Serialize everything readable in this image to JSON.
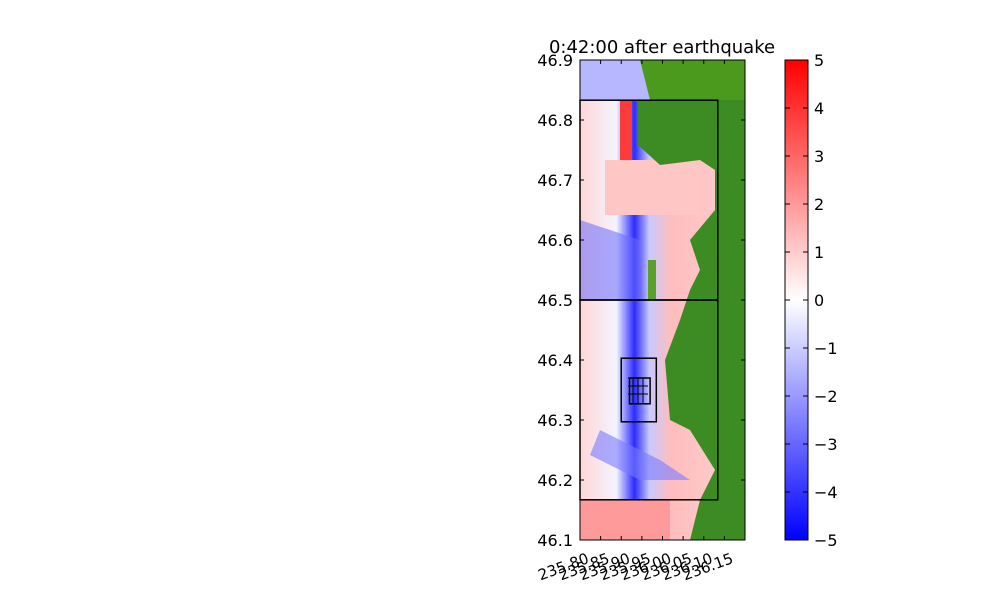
{
  "chart_data": {
    "type": "heatmap",
    "title": "0:42:00 after earthquake",
    "xlabel": "",
    "ylabel": "",
    "xlim": [
      235.8,
      236.2
    ],
    "ylim": [
      46.1,
      46.9
    ],
    "x_ticks": [
      "235.80",
      "235.85",
      "235.90",
      "235.95",
      "236.00",
      "236.05",
      "236.10",
      "236.15"
    ],
    "y_ticks": [
      "46.1",
      "46.2",
      "46.3",
      "46.4",
      "46.5",
      "46.6",
      "46.7",
      "46.8",
      "46.9"
    ],
    "colorbar": {
      "range": [
        -5,
        5
      ],
      "ticks": [
        "5",
        "4",
        "3",
        "2",
        "1",
        "0",
        "−1",
        "−2",
        "−3",
        "−4",
        "−5"
      ],
      "colors": [
        "#0000ff",
        "#ffffff",
        "#ff0000"
      ]
    },
    "land_color": "#3c8c23",
    "grid_patches": [
      {
        "x0": 235.8,
        "x1": 236.134,
        "y0": 46.167,
        "y1": 46.5
      },
      {
        "x0": 235.8,
        "x1": 236.134,
        "y0": 46.5,
        "y1": 46.833
      },
      {
        "x0": 235.9,
        "x1": 235.985,
        "y0": 46.297,
        "y1": 46.403
      },
      {
        "x0": 235.92,
        "x1": 235.97,
        "y0": 46.327,
        "y1": 46.37
      }
    ]
  }
}
